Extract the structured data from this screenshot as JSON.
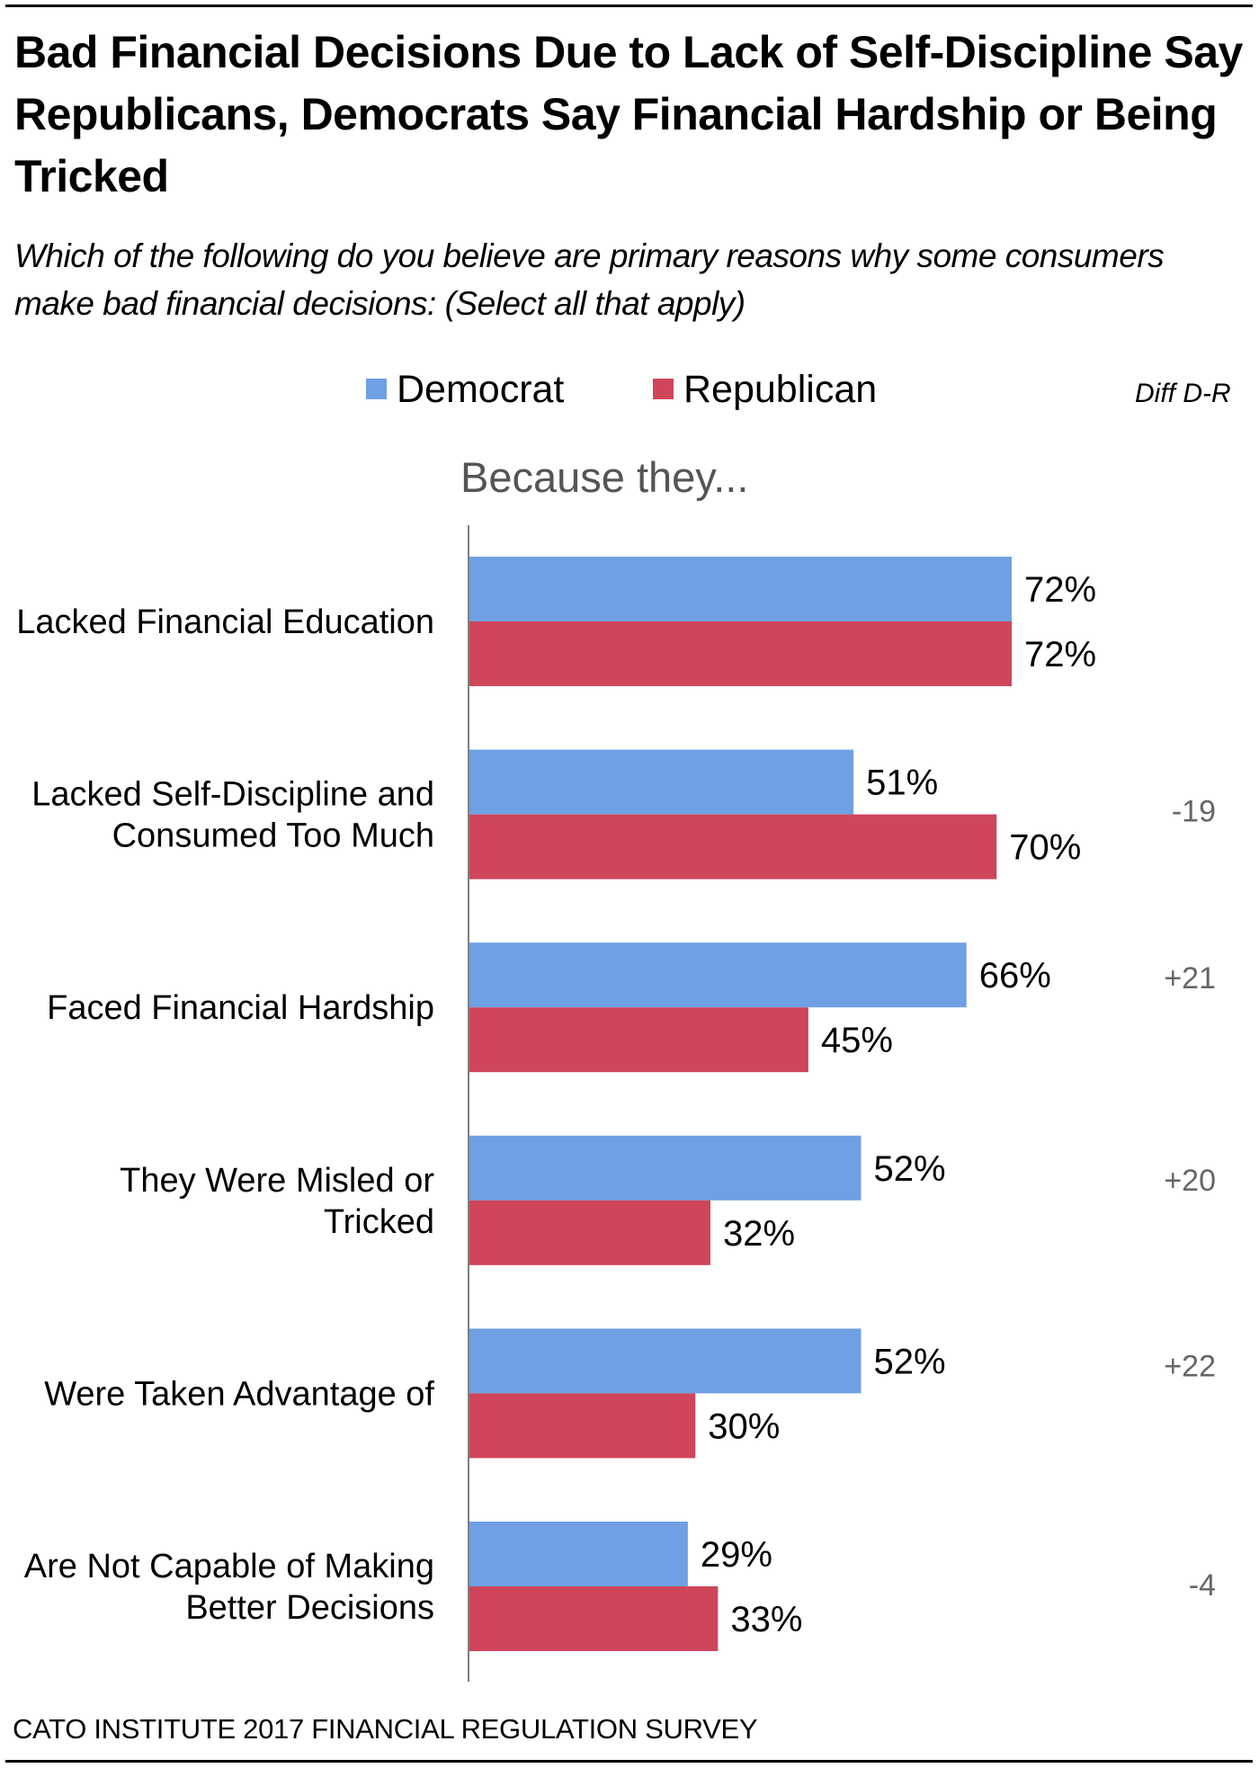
{
  "title": "Bad Financial Decisions Due to Lack of Self-Discipline Say Republicans, Democrats Say Financial Hardship or Being Tricked",
  "subtitle": "Which of the following do you believe are primary reasons why some consumers make bad financial decisions:  (Select all that apply)",
  "footer": "CATO INSTITUTE 2017 FINANCIAL REGULATION SURVEY",
  "colors": {
    "democrat": "#6fa0e3",
    "republican": "#cf455a",
    "diff_text": "#666666",
    "axis": "#7f7f7f"
  },
  "chart_data": {
    "type": "bar",
    "orientation": "horizontal",
    "title": "Bad Financial Decisions Due to Lack of Self-Discipline Say Republicans, Democrats Say Financial Hardship or Being Tricked",
    "subtitle": "Which of the following do you believe are primary reasons why some consumers make bad financial decisions:  (Select all that apply)",
    "axis_header": "Because they...",
    "diff_header": "Diff D-R",
    "xlabel": "",
    "ylabel": "",
    "xlim": [
      0,
      100
    ],
    "grid": false,
    "legend": {
      "placement": "top-center",
      "entries": [
        "Democrat",
        "Republican"
      ]
    },
    "categories": [
      [
        "Lacked Financial Education"
      ],
      [
        "Lacked Self-Discipline and",
        "Consumed Too Much"
      ],
      [
        "Faced Financial Hardship"
      ],
      [
        "They Were Misled or",
        "Tricked"
      ],
      [
        "Were Taken Advantage of"
      ],
      [
        "Are Not Capable of Making",
        "Better Decisions"
      ]
    ],
    "series": [
      {
        "name": "Democrat",
        "values": [
          72,
          51,
          66,
          52,
          52,
          29
        ],
        "labels": [
          "72%",
          "51%",
          "66%",
          "52%",
          "52%",
          "29%"
        ]
      },
      {
        "name": "Republican",
        "values": [
          72,
          70,
          45,
          32,
          30,
          33
        ],
        "labels": [
          "72%",
          "70%",
          "45%",
          "32%",
          "30%",
          "33%"
        ]
      }
    ],
    "diff": [
      "",
      "-19",
      "+21",
      "+20",
      "+22",
      "-4"
    ]
  }
}
